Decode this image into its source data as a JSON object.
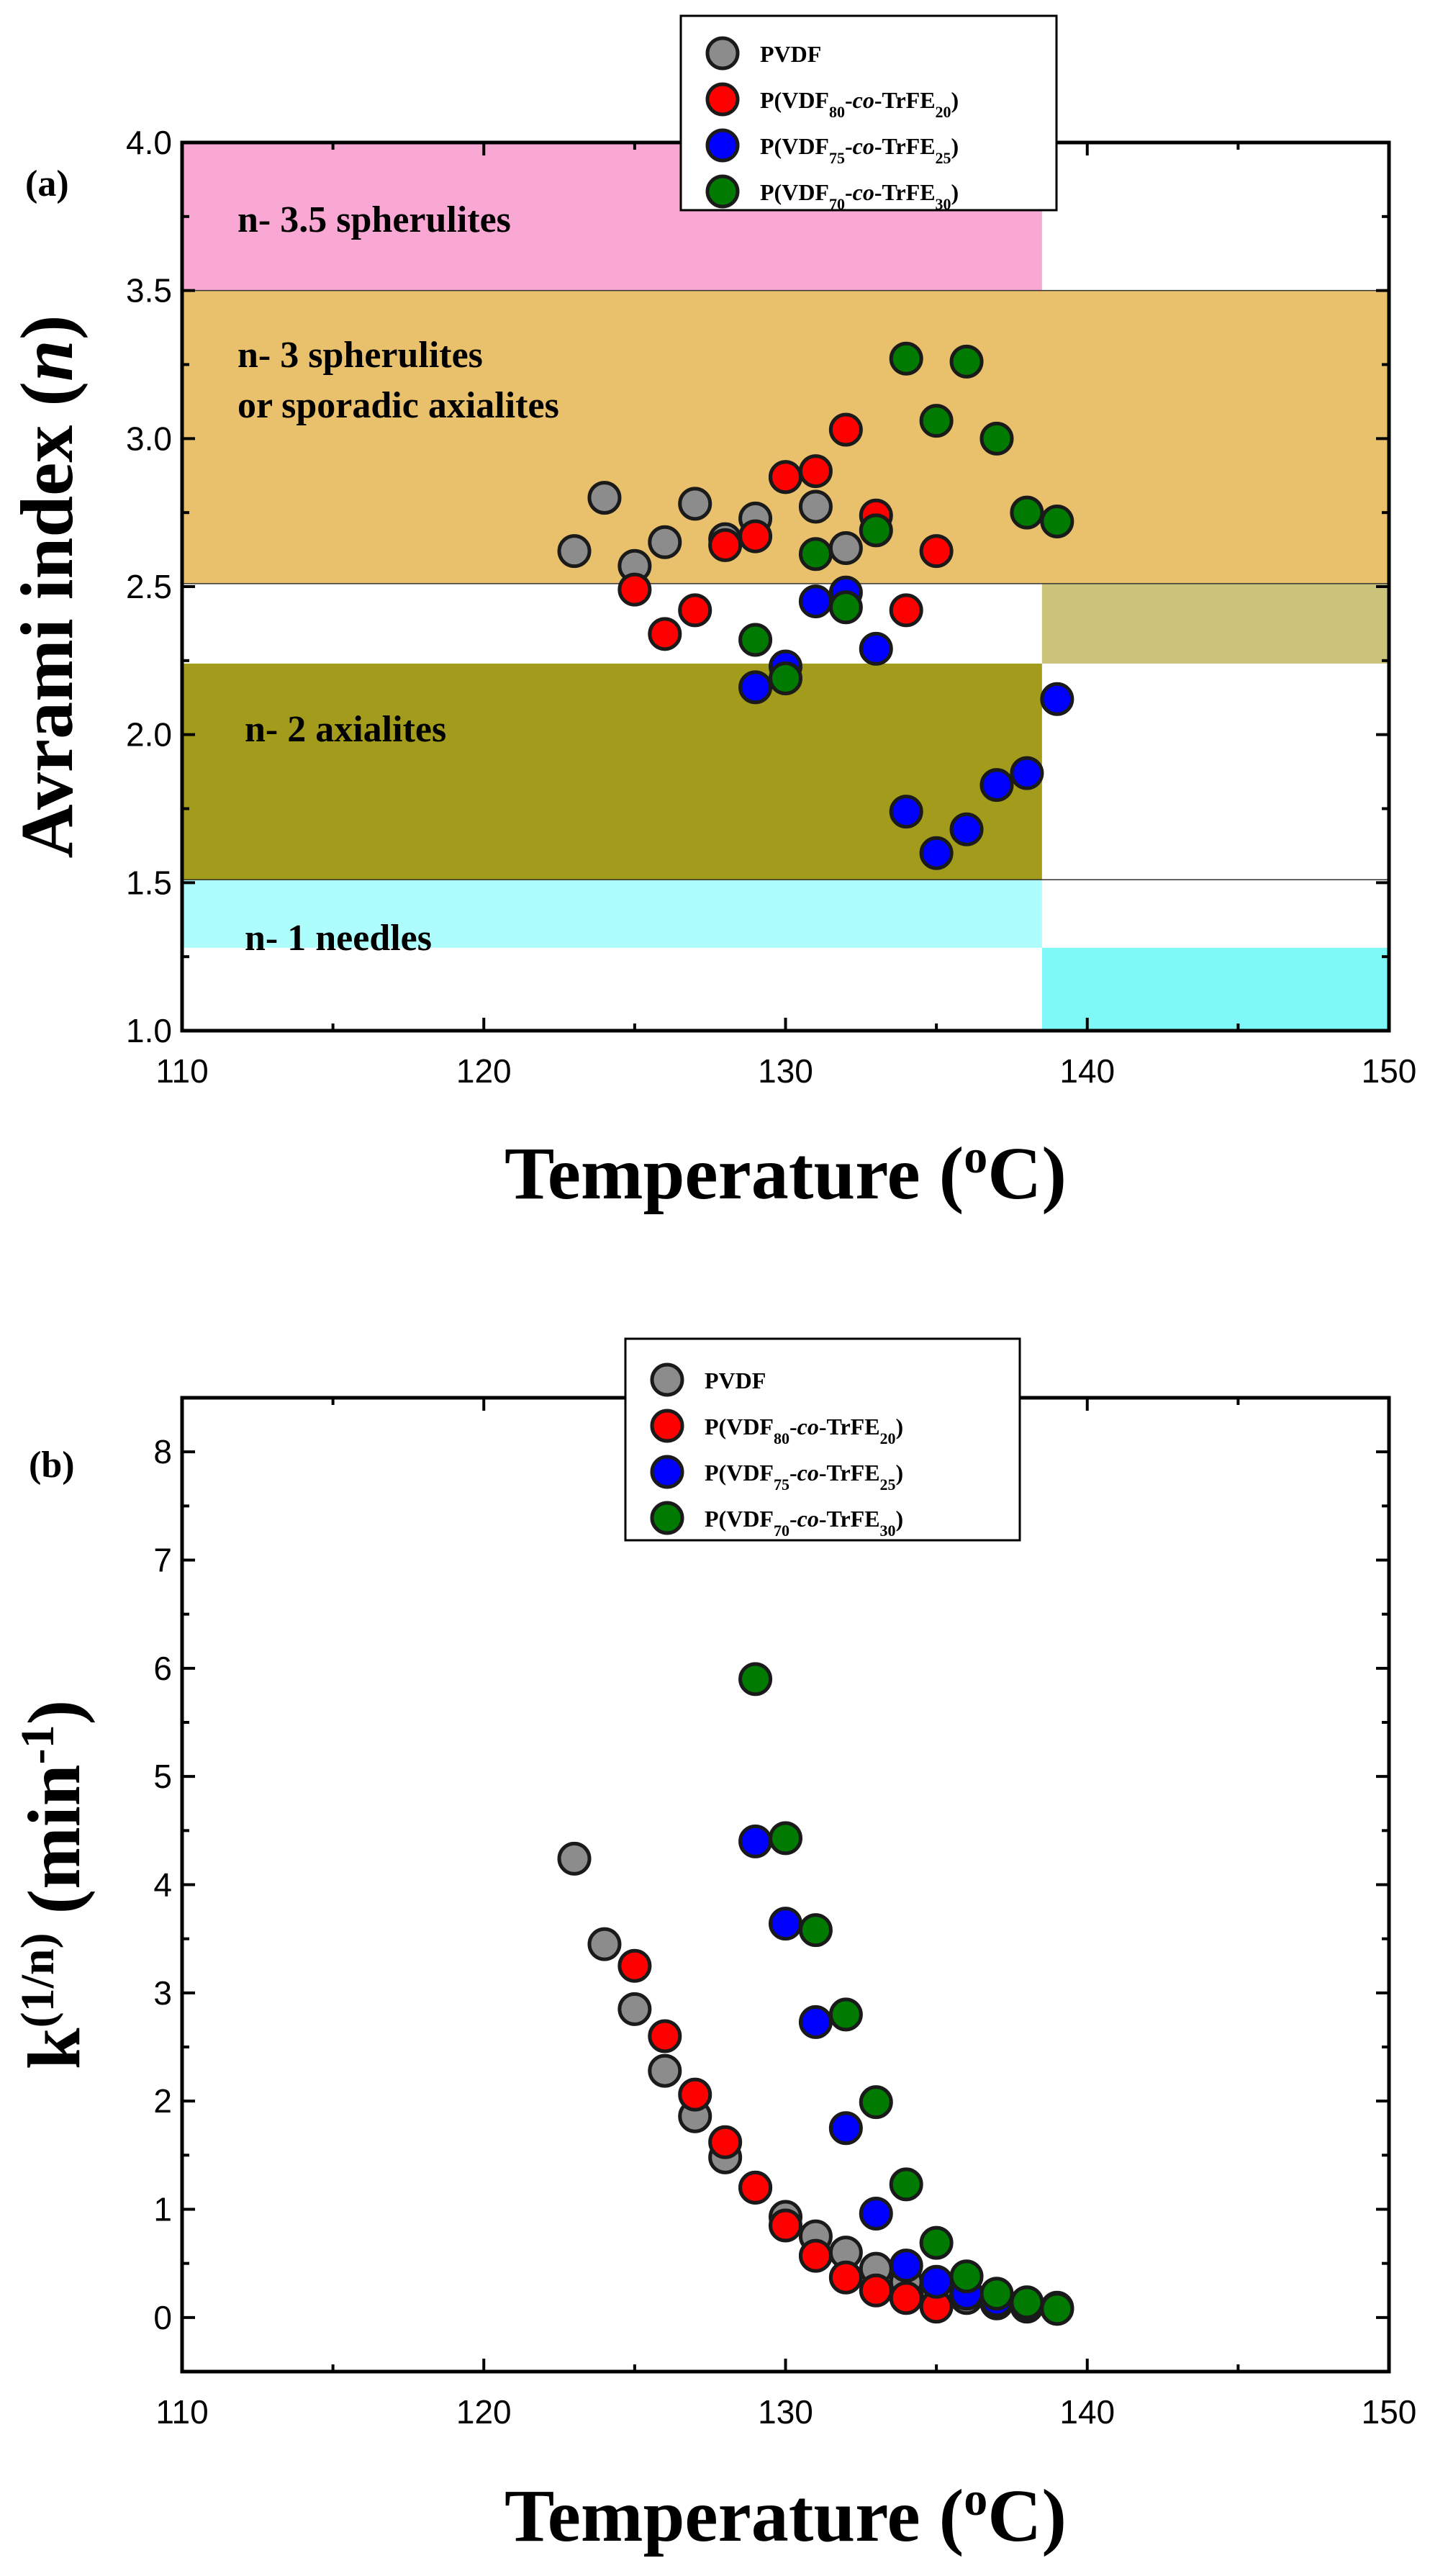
{
  "chart_data": [
    {
      "type": "scatter",
      "panel_label": "(a)",
      "xlabel": "Temperature (",
      "xlabel_sup": "o",
      "xlabel_end": "C)",
      "ylabel": "Avrami index (",
      "ylabel_var": "n",
      "ylabel_end": ")",
      "xlim": [
        110,
        150
      ],
      "ylim": [
        1.0,
        4.0
      ],
      "xticks": [
        110,
        120,
        130,
        140,
        150
      ],
      "xtick_labels": [
        "110",
        "120",
        "130",
        "140",
        "150"
      ],
      "yticks": [
        1.0,
        1.5,
        2.0,
        2.5,
        3.0,
        3.5,
        4.0
      ],
      "ytick_labels": [
        "1.0",
        "1.5",
        "2.0",
        "2.5",
        "3.0",
        "3.5",
        "4.0"
      ],
      "legend_position": "top-center",
      "regions": [
        {
          "label": "n- 3.5 spherulites",
          "x": [
            110,
            138.5
          ],
          "y": [
            3.5,
            4.0
          ],
          "color": "#f9a8d4"
        },
        {
          "label": "n- 3 spherulites",
          "label2": "or sporadic axialites",
          "x": [
            110,
            150
          ],
          "y": [
            2.51,
            3.5
          ],
          "color": "#e9c16c"
        },
        {
          "label": "n- 2 axialites",
          "x": [
            110,
            138.5
          ],
          "y": [
            1.51,
            2.24
          ],
          "color": "#a39b1b"
        },
        {
          "label": "",
          "x": [
            138.5,
            150
          ],
          "y": [
            2.24,
            2.51
          ],
          "color": "#cbc37a"
        },
        {
          "label": "n- 1 needles",
          "x": [
            110,
            138.5
          ],
          "y": [
            1.28,
            1.51
          ],
          "color": "#aefdfd"
        },
        {
          "label": "",
          "x": [
            138.5,
            150
          ],
          "y": [
            1.0,
            1.28
          ],
          "color": "#7ff8f8"
        }
      ],
      "series": [
        {
          "name": "PVDF",
          "color": "#8c8c8c",
          "x": [
            123,
            124,
            125,
            126,
            127,
            128,
            129,
            130,
            131,
            132
          ],
          "y": [
            2.62,
            2.8,
            2.57,
            2.65,
            2.78,
            2.66,
            2.73,
            2.87,
            2.77,
            2.63
          ]
        },
        {
          "name": "P(VDF80-co-TrFE20)",
          "color": "#ff0000",
          "x": [
            125,
            126,
            127,
            128,
            129,
            130,
            131,
            132,
            133,
            134,
            135
          ],
          "y": [
            2.49,
            2.34,
            2.42,
            2.64,
            2.67,
            2.87,
            2.89,
            3.03,
            2.74,
            2.42,
            2.62
          ]
        },
        {
          "name": "P(VDF75-co-TrFE25)",
          "color": "#0000ff",
          "x": [
            129,
            130,
            131,
            132,
            133,
            134,
            135,
            136,
            137,
            138,
            139
          ],
          "y": [
            2.16,
            2.23,
            2.45,
            2.48,
            2.29,
            1.74,
            1.6,
            1.68,
            1.83,
            1.87,
            2.12
          ]
        },
        {
          "name": "P(VDF70-co-TrFE30)",
          "color": "#007a00",
          "x": [
            129,
            130,
            131,
            132,
            133,
            134,
            135,
            136,
            137,
            138,
            139
          ],
          "y": [
            2.32,
            2.19,
            2.61,
            2.43,
            2.69,
            3.27,
            3.06,
            3.26,
            3.0,
            2.75,
            2.72
          ]
        }
      ]
    },
    {
      "type": "scatter",
      "panel_label": "(b)",
      "xlabel": "Temperature (",
      "xlabel_sup": "o",
      "xlabel_end": "C)",
      "ylabel": "k",
      "ylabel_sup1": "(1/n)",
      "ylabel_mid": " (min",
      "ylabel_sup2": "-1",
      "ylabel_end": ")",
      "xlim": [
        110,
        150
      ],
      "ylim": [
        -0.5,
        8.5
      ],
      "xticks": [
        110,
        120,
        130,
        140,
        150
      ],
      "xtick_labels": [
        "110",
        "120",
        "130",
        "140",
        "150"
      ],
      "yticks": [
        0,
        1,
        2,
        3,
        4,
        5,
        6,
        7,
        8
      ],
      "ytick_labels": [
        "0",
        "1",
        "2",
        "3",
        "4",
        "5",
        "6",
        "7",
        "8"
      ],
      "legend_position": "top-center",
      "series": [
        {
          "name": "PVDF",
          "color": "#8c8c8c",
          "x": [
            123,
            124,
            125,
            126,
            127,
            128,
            129,
            130,
            131,
            132,
            133,
            134,
            135,
            136,
            137,
            138,
            139
          ],
          "y": [
            4.24,
            3.45,
            2.85,
            2.28,
            1.86,
            1.48,
            1.2,
            0.93,
            0.75,
            0.6,
            0.45,
            0.33,
            0.25,
            0.18,
            0.13,
            0.1,
            0.08
          ]
        },
        {
          "name": "P(VDF80-co-TrFE20)",
          "color": "#ff0000",
          "x": [
            125,
            126,
            127,
            128,
            129,
            130,
            131,
            132,
            133,
            134,
            135
          ],
          "y": [
            3.25,
            2.6,
            2.06,
            1.62,
            1.2,
            0.85,
            0.57,
            0.37,
            0.25,
            0.18,
            0.1
          ]
        },
        {
          "name": "P(VDF75-co-TrFE25)",
          "color": "#0000ff",
          "x": [
            129,
            130,
            131,
            132,
            133,
            134,
            135,
            136,
            137,
            138,
            139
          ],
          "y": [
            4.4,
            3.64,
            2.73,
            1.75,
            0.96,
            0.48,
            0.33,
            0.22,
            0.16,
            0.12,
            0.09
          ]
        },
        {
          "name": "P(VDF70-co-TrFE30)",
          "color": "#007a00",
          "x": [
            129,
            130,
            131,
            132,
            133,
            134,
            135,
            136,
            137,
            138,
            139
          ],
          "y": [
            5.9,
            4.43,
            3.58,
            2.8,
            1.99,
            1.23,
            0.69,
            0.38,
            0.22,
            0.14,
            0.08
          ]
        }
      ]
    }
  ],
  "legend": {
    "entries": [
      {
        "base": "PVDF",
        "color": "#8c8c8c"
      },
      {
        "base": "P(VDF",
        "sub1": "80",
        "mid": "-",
        "ital": "co",
        "mid2": "-TrFE",
        "sub2": "20",
        "end": ")",
        "color": "#ff0000"
      },
      {
        "base": "P(VDF",
        "sub1": "75",
        "mid": "-",
        "ital": "co",
        "mid2": "-TrFE",
        "sub2": "25",
        "end": ")",
        "color": "#0000ff"
      },
      {
        "base": "P(VDF",
        "sub1": "70",
        "mid": "-",
        "ital": "co",
        "mid2": "-TrFE",
        "sub2": "30",
        "end": ")",
        "color": "#007a00"
      }
    ]
  }
}
